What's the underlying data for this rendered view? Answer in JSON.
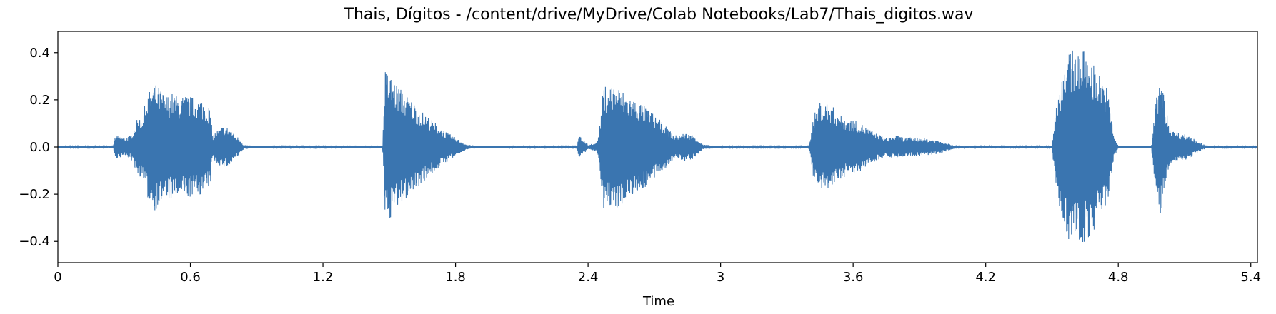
{
  "chart_data": {
    "type": "area",
    "title": "Thais, Dígitos -  /content/drive/MyDrive/Colab Notebooks/Lab7/Thais_digitos.wav",
    "xlabel": "Time",
    "ylabel": "",
    "xlim": [
      0,
      5.43
    ],
    "ylim": [
      -0.49,
      0.49
    ],
    "grid": false,
    "x_ticks": [
      0,
      0.6,
      1.2,
      1.8,
      2.4,
      3,
      3.6,
      4.2,
      4.8,
      5.4
    ],
    "x_tick_labels": [
      "0",
      "0.6",
      "1.2",
      "1.8",
      "2.4",
      "3",
      "3.6",
      "4.2",
      "4.8",
      "5.4"
    ],
    "y_ticks": [
      0.4,
      0.2,
      0.0,
      -0.2,
      -0.4
    ],
    "y_tick_labels": [
      "0.4",
      "0.2",
      "0.0",
      "−0.2",
      "−0.4"
    ],
    "color": "#3a75b0",
    "series": [
      {
        "x": [
          0,
          0.25,
          0.26,
          0.3,
          0.33,
          0.36,
          0.38,
          0.41,
          0.44,
          0.47,
          0.49,
          0.52,
          0.55,
          0.58,
          0.62,
          0.66,
          0.69,
          0.7,
          0.72,
          0.75,
          0.78,
          0.8,
          0.82,
          0.84,
          0.88,
          1.0,
          1.2,
          1.47,
          1.48,
          1.5,
          1.55,
          1.6,
          1.65,
          1.7,
          1.75,
          1.8,
          1.85,
          1.9,
          2.2,
          2.35,
          2.36,
          2.4,
          2.44,
          2.45,
          2.47,
          2.52,
          2.58,
          2.65,
          2.72,
          2.79,
          2.8,
          2.84,
          2.88,
          2.92,
          3.0,
          3.2,
          3.4,
          3.42,
          3.45,
          3.5,
          3.55,
          3.62,
          3.7,
          3.75,
          3.8,
          3.83,
          3.85,
          3.9,
          3.98,
          4.05,
          4.1,
          4.3,
          4.5,
          4.52,
          4.54,
          4.55,
          4.6,
          4.65,
          4.7,
          4.75,
          4.78,
          4.8,
          4.84,
          4.88,
          4.95,
          4.97,
          4.99,
          5.0,
          5.02,
          5.04,
          5.08,
          5.12,
          5.15,
          5.2,
          5.43
        ],
        "env": [
          0.004,
          0.004,
          0.05,
          0.04,
          0.05,
          0.12,
          0.13,
          0.23,
          0.27,
          0.24,
          0.22,
          0.23,
          0.21,
          0.22,
          0.21,
          0.2,
          0.17,
          0.05,
          0.07,
          0.09,
          0.08,
          0.05,
          0.04,
          0.01,
          0.005,
          0.007,
          0.007,
          0.006,
          0.33,
          0.31,
          0.25,
          0.2,
          0.15,
          0.11,
          0.07,
          0.04,
          0.01,
          0.005,
          0.004,
          0.004,
          0.05,
          0.01,
          0.02,
          0.06,
          0.26,
          0.27,
          0.22,
          0.18,
          0.12,
          0.05,
          0.05,
          0.06,
          0.05,
          0.01,
          0.004,
          0.004,
          0.004,
          0.13,
          0.2,
          0.18,
          0.13,
          0.11,
          0.06,
          0.04,
          0.05,
          0.04,
          0.04,
          0.04,
          0.03,
          0.01,
          0.004,
          0.004,
          0.004,
          0.2,
          0.27,
          0.37,
          0.42,
          0.41,
          0.34,
          0.25,
          0.05,
          0.005,
          0.005,
          0.006,
          0.005,
          0.2,
          0.3,
          0.26,
          0.14,
          0.07,
          0.06,
          0.05,
          0.03,
          0.004,
          0.004
        ]
      }
    ]
  }
}
